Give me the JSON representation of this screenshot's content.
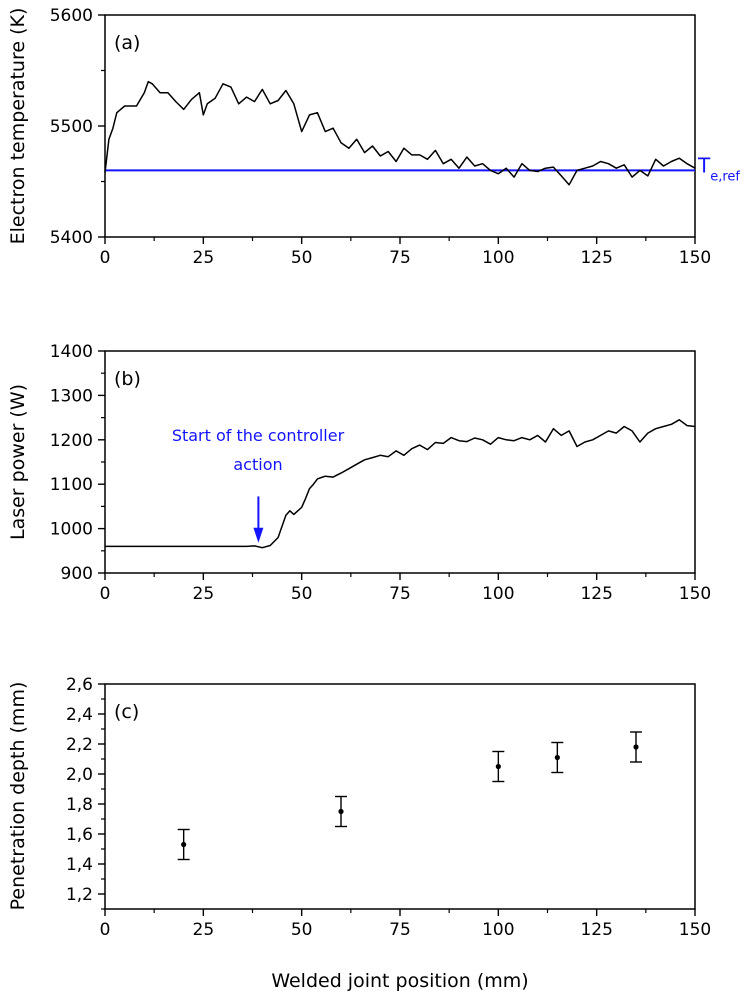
{
  "xlabel": "Welded joint position (mm)",
  "chart_data": [
    {
      "type": "line",
      "panel": "(a)",
      "ylabel": "Electron temperature (K)",
      "xlim": [
        0,
        150
      ],
      "ylim": [
        5400,
        5600
      ],
      "xticks": [
        0,
        25,
        50,
        75,
        100,
        125,
        150
      ],
      "yticks": [
        5400,
        5500,
        5600
      ],
      "xtick_labels": [
        "0",
        "25",
        "50",
        "75",
        "100",
        "125",
        "150"
      ],
      "ytick_labels": [
        "5400",
        "5500",
        "5600"
      ],
      "reference": {
        "label": "T",
        "subscript": "e,ref",
        "value": 5460,
        "color": "#1414ff"
      },
      "series": [
        {
          "name": "Electron temperature",
          "color": "#000000",
          "x": [
            0,
            1,
            2,
            3,
            5,
            8,
            10,
            11,
            12,
            14,
            16,
            18,
            20,
            22,
            24,
            25,
            26,
            28,
            30,
            32,
            34,
            36,
            38,
            40,
            42,
            44,
            46,
            48,
            50,
            52,
            54,
            56,
            58,
            60,
            62,
            64,
            66,
            68,
            70,
            72,
            74,
            76,
            78,
            80,
            82,
            84,
            86,
            88,
            90,
            92,
            94,
            96,
            98,
            100,
            102,
            104,
            106,
            108,
            110,
            112,
            114,
            116,
            118,
            120,
            122,
            124,
            126,
            128,
            130,
            132,
            134,
            136,
            138,
            140,
            142,
            144,
            146,
            148,
            150
          ],
          "y": [
            5458,
            5488,
            5498,
            5512,
            5518,
            5518,
            5530,
            5540,
            5538,
            5530,
            5530,
            5522,
            5515,
            5524,
            5530,
            5510,
            5520,
            5525,
            5538,
            5535,
            5520,
            5526,
            5522,
            5533,
            5520,
            5523,
            5532,
            5520,
            5495,
            5510,
            5512,
            5495,
            5498,
            5485,
            5480,
            5488,
            5476,
            5482,
            5473,
            5477,
            5468,
            5480,
            5474,
            5474,
            5470,
            5478,
            5466,
            5470,
            5462,
            5472,
            5464,
            5466,
            5460,
            5457,
            5462,
            5454,
            5466,
            5460,
            5459,
            5462,
            5463,
            5455,
            5447,
            5460,
            5462,
            5464,
            5468,
            5466,
            5462,
            5465,
            5454,
            5460,
            5455,
            5470,
            5464,
            5468,
            5471,
            5466,
            5462
          ]
        }
      ]
    },
    {
      "type": "line",
      "panel": "(b)",
      "ylabel": "Laser power (W)",
      "xlim": [
        0,
        150
      ],
      "ylim": [
        900,
        1400
      ],
      "xticks": [
        0,
        25,
        50,
        75,
        100,
        125,
        150
      ],
      "yticks": [
        900,
        1000,
        1100,
        1200,
        1300,
        1400
      ],
      "xtick_labels": [
        "0",
        "25",
        "50",
        "75",
        "100",
        "125",
        "150"
      ],
      "ytick_labels": [
        "900",
        "1000",
        "1100",
        "1200",
        "1300",
        "1400"
      ],
      "annotation": {
        "lines": [
          "Start of the controller",
          "action"
        ],
        "x": 39,
        "arrow_from": 1050,
        "arrow_to": 975,
        "color": "#1414ff"
      },
      "series": [
        {
          "name": "Laser power",
          "color": "#000000",
          "x": [
            0,
            10,
            20,
            30,
            36,
            38,
            40,
            42,
            44,
            46,
            47,
            48,
            50,
            51,
            52,
            53,
            54,
            55,
            56,
            58,
            60,
            62,
            64,
            66,
            68,
            70,
            72,
            74,
            76,
            78,
            80,
            82,
            84,
            86,
            88,
            90,
            92,
            94,
            96,
            98,
            100,
            102,
            104,
            106,
            108,
            110,
            112,
            114,
            116,
            118,
            120,
            122,
            124,
            126,
            128,
            130,
            132,
            134,
            136,
            138,
            140,
            142,
            144,
            146,
            148,
            150
          ],
          "y": [
            960,
            960,
            960,
            960,
            960,
            961,
            957,
            962,
            980,
            1030,
            1040,
            1032,
            1048,
            1068,
            1090,
            1100,
            1112,
            1115,
            1118,
            1116,
            1125,
            1135,
            1145,
            1155,
            1160,
            1165,
            1162,
            1175,
            1165,
            1180,
            1188,
            1178,
            1194,
            1192,
            1205,
            1198,
            1196,
            1204,
            1200,
            1190,
            1205,
            1200,
            1198,
            1205,
            1200,
            1210,
            1195,
            1225,
            1210,
            1220,
            1185,
            1195,
            1200,
            1210,
            1220,
            1215,
            1230,
            1220,
            1195,
            1215,
            1225,
            1230,
            1235,
            1245,
            1232,
            1230
          ]
        }
      ]
    },
    {
      "type": "scatter",
      "panel": "(c)",
      "ylabel": "Penetration depth (mm)",
      "xlim": [
        0,
        150
      ],
      "ylim": [
        1.1,
        2.6
      ],
      "xticks": [
        0,
        25,
        50,
        75,
        100,
        125,
        150
      ],
      "yticks": [
        1.2,
        1.4,
        1.6,
        1.8,
        2.0,
        2.2,
        2.4,
        2.6
      ],
      "xtick_labels": [
        "0",
        "25",
        "50",
        "75",
        "100",
        "125",
        "150"
      ],
      "ytick_labels": [
        "1,2",
        "1,4",
        "1,6",
        "1,8",
        "2,0",
        "2,2",
        "2,4",
        "2,6"
      ],
      "series": [
        {
          "name": "Penetration depth",
          "x": [
            20,
            60,
            100,
            115,
            135
          ],
          "y": [
            1.53,
            1.75,
            2.05,
            2.11,
            2.18
          ],
          "err": [
            0.1,
            0.1,
            0.1,
            0.1,
            0.1
          ]
        }
      ]
    }
  ]
}
